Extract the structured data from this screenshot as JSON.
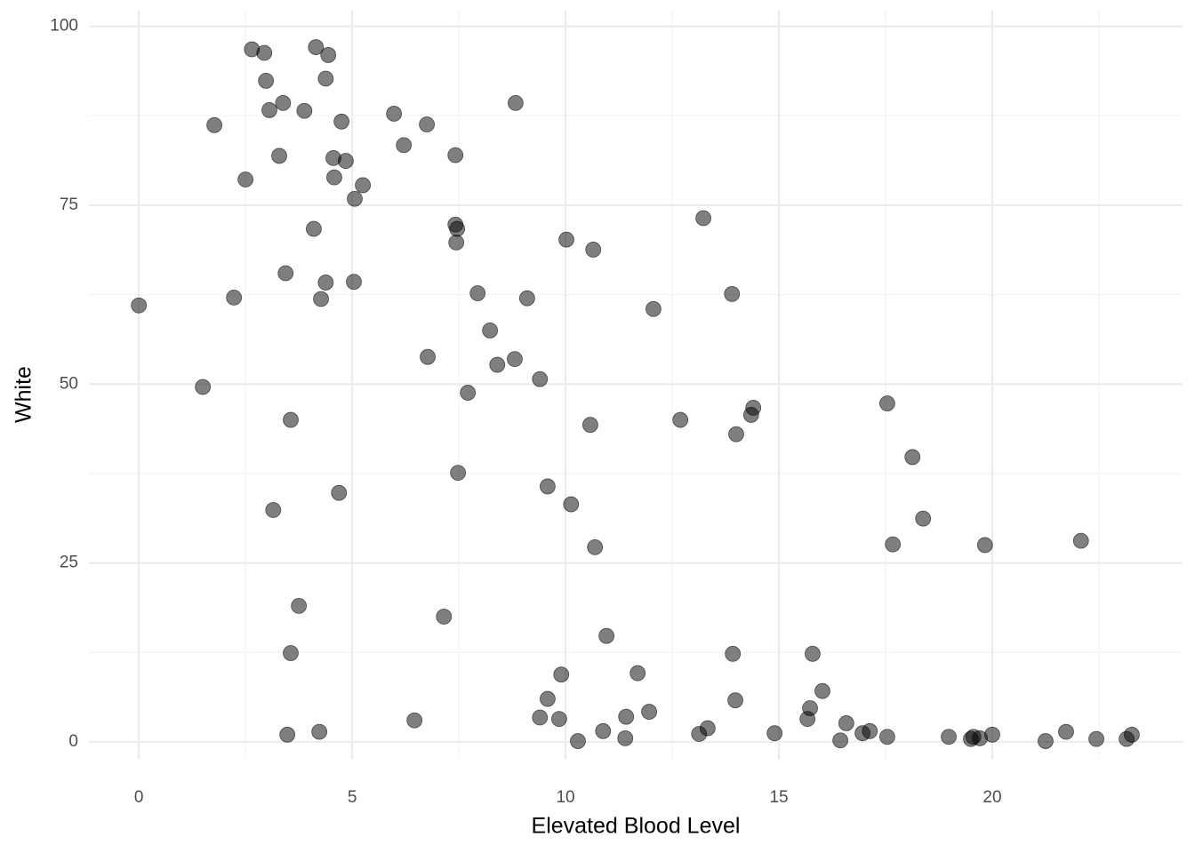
{
  "chart_data": {
    "type": "scatter",
    "x_label": "Elevated Blood Level",
    "y_label": "White",
    "color": "#000000",
    "opacity": 0.5,
    "grid": true,
    "minor_grid": true,
    "xlim": [
      -1.17,
      24.46
    ],
    "ylim": [
      -2.5,
      102.2
    ],
    "xticks": [
      0,
      5,
      10,
      15,
      20
    ],
    "yticks": [
      0,
      25,
      50,
      75,
      100
    ],
    "x": [
      0,
      1.5,
      1.77,
      2.23,
      2.5,
      2.65,
      2.94,
      2.98,
      3.06,
      3.15,
      3.29,
      3.38,
      3.44,
      3.48,
      3.56,
      3.56,
      3.75,
      3.88,
      4.1,
      4.15,
      4.23,
      4.27,
      4.38,
      4.38,
      4.44,
      4.56,
      4.58,
      4.69,
      4.75,
      4.85,
      5.04,
      5.06,
      5.25,
      5.98,
      6.21,
      6.46,
      6.75,
      6.77,
      7.15,
      7.42,
      7.42,
      7.46,
      7.44,
      7.48,
      7.71,
      7.94,
      8.23,
      8.4,
      8.81,
      8.83,
      9.1,
      9.4,
      9.4,
      9.58,
      9.58,
      9.85,
      9.9,
      10.02,
      10.13,
      10.29,
      10.58,
      10.65,
      10.69,
      10.88,
      10.96,
      11.4,
      11.42,
      11.69,
      11.96,
      12.06,
      12.69,
      13.13,
      13.23,
      13.33,
      13.9,
      13.92,
      13.98,
      14.0,
      14.35,
      14.4,
      14.9,
      15.67,
      15.73,
      15.79,
      16.02,
      16.44,
      16.58,
      16.96,
      17.13,
      17.54,
      17.54,
      17.67,
      18.13,
      18.38,
      18.98,
      19.5,
      19.56,
      19.71,
      19.83,
      20.0,
      21.25,
      21.73,
      22.08,
      22.44,
      23.15,
      23.27
    ],
    "values": [
      61.0,
      49.6,
      86.2,
      62.1,
      78.6,
      96.8,
      96.3,
      92.4,
      88.3,
      32.4,
      81.9,
      89.3,
      65.5,
      1.0,
      45.0,
      12.4,
      19.0,
      88.2,
      71.7,
      97.1,
      1.4,
      61.9,
      92.7,
      64.2,
      96.0,
      81.6,
      78.9,
      34.8,
      86.7,
      81.2,
      64.3,
      75.9,
      77.8,
      87.8,
      83.4,
      3.0,
      86.3,
      53.8,
      17.5,
      82.0,
      72.3,
      71.7,
      69.8,
      37.6,
      48.8,
      62.7,
      57.5,
      52.7,
      53.5,
      89.3,
      62.0,
      50.7,
      3.4,
      35.7,
      6.0,
      3.2,
      9.4,
      70.2,
      33.2,
      0.1,
      44.3,
      68.8,
      27.2,
      1.5,
      14.8,
      0.5,
      3.5,
      9.6,
      4.2,
      60.5,
      45.0,
      1.1,
      73.2,
      1.9,
      62.6,
      12.3,
      5.8,
      43.0,
      45.7,
      46.7,
      1.2,
      3.2,
      4.7,
      12.3,
      7.1,
      0.2,
      2.6,
      1.2,
      1.5,
      47.3,
      0.7,
      27.6,
      39.8,
      31.2,
      0.7,
      0.4,
      0.7,
      0.5,
      27.5,
      1.0,
      0.1,
      1.4,
      28.1,
      0.4,
      0.4,
      1.0
    ]
  }
}
